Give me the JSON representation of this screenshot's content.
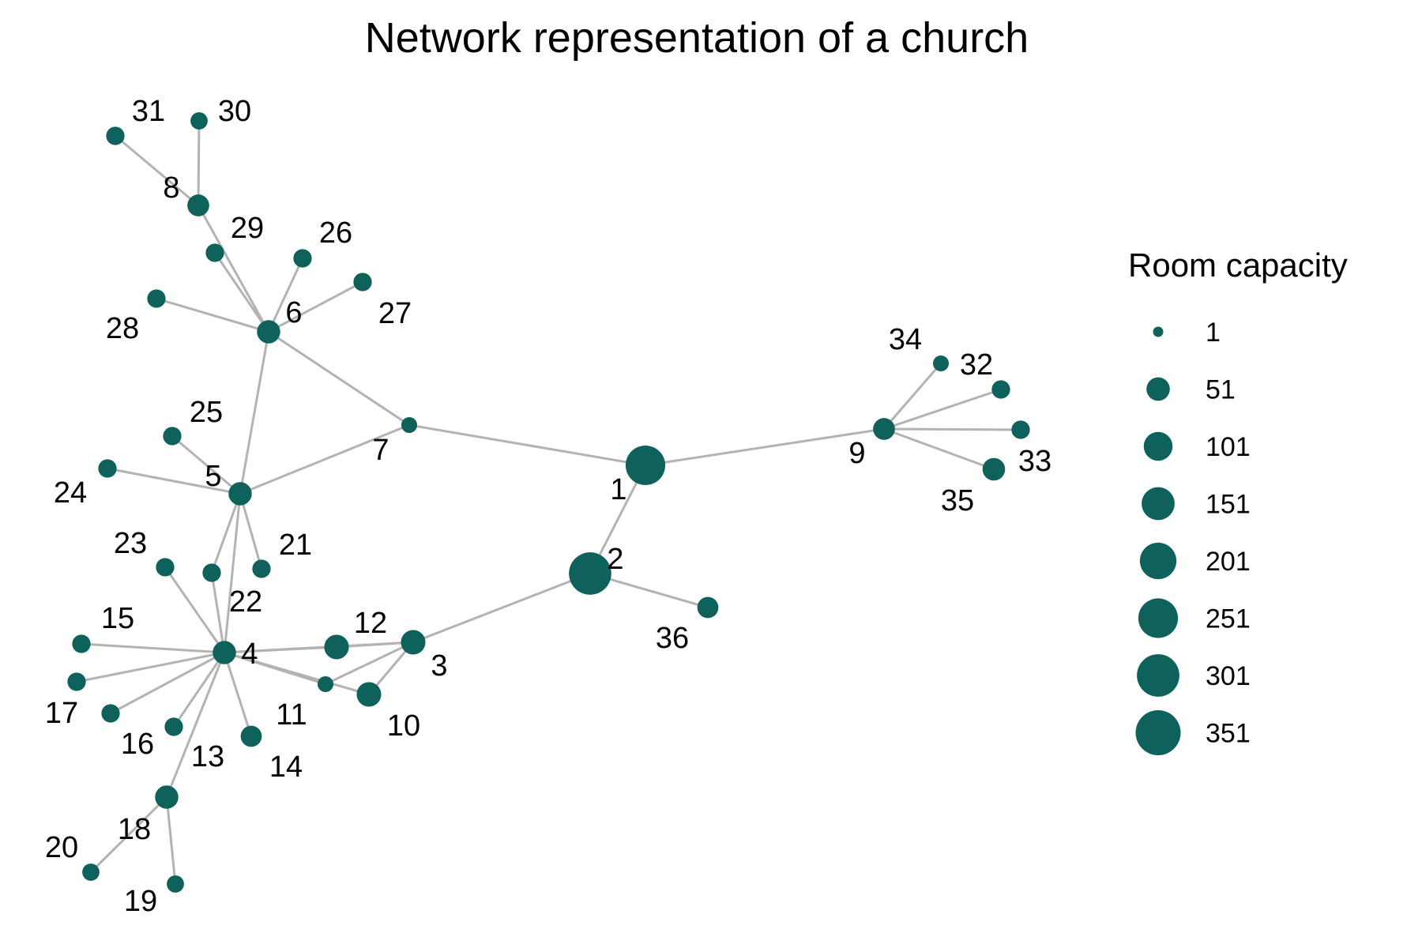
{
  "title": "Network representation of a church",
  "colors": {
    "node": "#0e625b",
    "edge": "#b3b3b3",
    "text": "#000000"
  },
  "legend": {
    "title": "Room capacity",
    "entries": [
      {
        "label": "1",
        "value": 1
      },
      {
        "label": "51",
        "value": 51
      },
      {
        "label": "101",
        "value": 101
      },
      {
        "label": "151",
        "value": 151
      },
      {
        "label": "201",
        "value": 201
      },
      {
        "label": "251",
        "value": 251
      },
      {
        "label": "301",
        "value": 301
      },
      {
        "label": "351",
        "value": 351
      }
    ]
  },
  "nodes": [
    {
      "id": "1",
      "capacity": 250
    },
    {
      "id": "2",
      "capacity": 300
    },
    {
      "id": "3",
      "capacity": 60
    },
    {
      "id": "4",
      "capacity": 50
    },
    {
      "id": "5",
      "capacity": 50
    },
    {
      "id": "6",
      "capacity": 50
    },
    {
      "id": "7",
      "capacity": 10
    },
    {
      "id": "8",
      "capacity": 40
    },
    {
      "id": "9",
      "capacity": 40
    },
    {
      "id": "10",
      "capacity": 60
    },
    {
      "id": "11",
      "capacity": 10
    },
    {
      "id": "12",
      "capacity": 60
    },
    {
      "id": "13",
      "capacity": 20
    },
    {
      "id": "14",
      "capacity": 35
    },
    {
      "id": "15",
      "capacity": 20
    },
    {
      "id": "16",
      "capacity": 20
    },
    {
      "id": "17",
      "capacity": 20
    },
    {
      "id": "18",
      "capacity": 50
    },
    {
      "id": "19",
      "capacity": 15
    },
    {
      "id": "20",
      "capacity": 15
    },
    {
      "id": "21",
      "capacity": 20
    },
    {
      "id": "22",
      "capacity": 20
    },
    {
      "id": "23",
      "capacity": 20
    },
    {
      "id": "24",
      "capacity": 20
    },
    {
      "id": "25",
      "capacity": 20
    },
    {
      "id": "26",
      "capacity": 20
    },
    {
      "id": "27",
      "capacity": 20
    },
    {
      "id": "28",
      "capacity": 20
    },
    {
      "id": "29",
      "capacity": 20
    },
    {
      "id": "30",
      "capacity": 15
    },
    {
      "id": "31",
      "capacity": 20
    },
    {
      "id": "32",
      "capacity": 20
    },
    {
      "id": "33",
      "capacity": 20
    },
    {
      "id": "34",
      "capacity": 10
    },
    {
      "id": "35",
      "capacity": 45
    },
    {
      "id": "36",
      "capacity": 35
    }
  ],
  "edges": [
    [
      "1",
      "2"
    ],
    [
      "1",
      "7"
    ],
    [
      "1",
      "9"
    ],
    [
      "2",
      "3"
    ],
    [
      "2",
      "36"
    ],
    [
      "3",
      "4"
    ],
    [
      "3",
      "10"
    ],
    [
      "3",
      "11"
    ],
    [
      "3",
      "12"
    ],
    [
      "4",
      "5"
    ],
    [
      "4",
      "10"
    ],
    [
      "4",
      "11"
    ],
    [
      "4",
      "12"
    ],
    [
      "4",
      "13"
    ],
    [
      "4",
      "14"
    ],
    [
      "4",
      "15"
    ],
    [
      "4",
      "16"
    ],
    [
      "4",
      "17"
    ],
    [
      "4",
      "18"
    ],
    [
      "4",
      "22"
    ],
    [
      "4",
      "23"
    ],
    [
      "5",
      "6"
    ],
    [
      "5",
      "7"
    ],
    [
      "5",
      "21"
    ],
    [
      "5",
      "22"
    ],
    [
      "5",
      "24"
    ],
    [
      "5",
      "25"
    ],
    [
      "6",
      "7"
    ],
    [
      "6",
      "8"
    ],
    [
      "6",
      "26"
    ],
    [
      "6",
      "27"
    ],
    [
      "6",
      "28"
    ],
    [
      "6",
      "29"
    ],
    [
      "8",
      "30"
    ],
    [
      "8",
      "31"
    ],
    [
      "9",
      "32"
    ],
    [
      "9",
      "33"
    ],
    [
      "9",
      "34"
    ],
    [
      "9",
      "35"
    ],
    [
      "18",
      "19"
    ],
    [
      "18",
      "20"
    ]
  ]
}
